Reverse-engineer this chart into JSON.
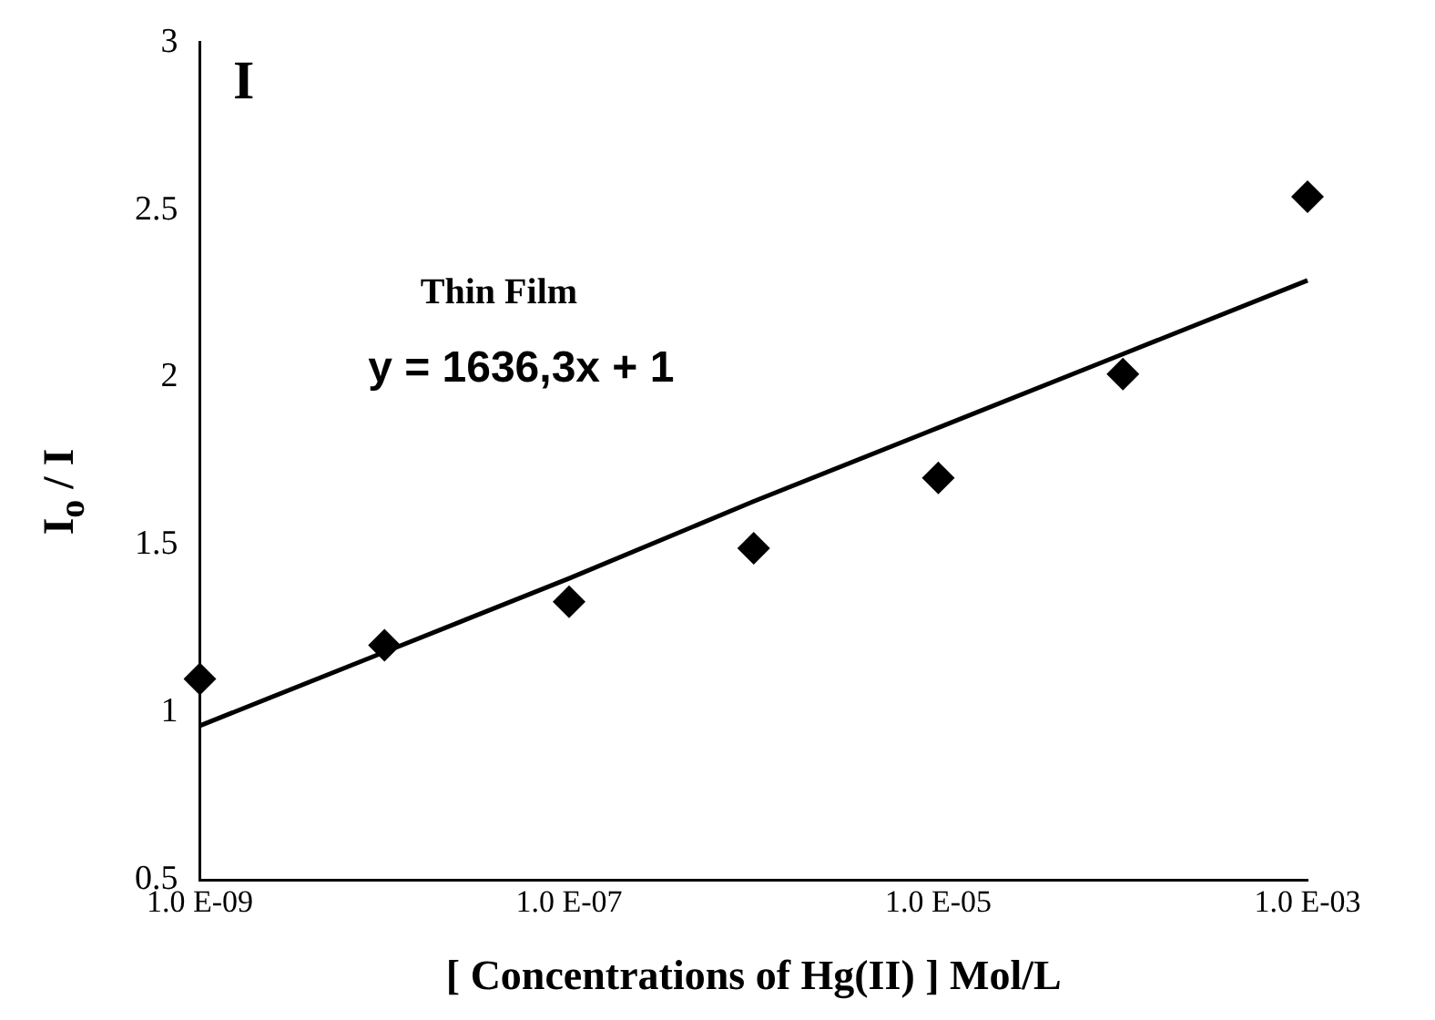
{
  "chart_data": {
    "type": "scatter",
    "annotations": [
      "I",
      "Thin Film",
      "y = 1636,3x + 1"
    ],
    "xlabel": "[ Concentrations of Hg(II) ] Mol/L",
    "ylabel": "I$_{o}$ / I",
    "categories": [
      "1.0 E-09",
      null,
      "1.0 E-07",
      null,
      "1.0 E-05",
      null,
      "1.0 E-03"
    ],
    "ylim": [
      0.5,
      3
    ],
    "yticks": [
      0.5,
      1,
      1.5,
      2,
      2.5,
      3
    ],
    "grid": false,
    "legend": false,
    "marker": "diamond",
    "series": [
      {
        "type": "scatter",
        "color": "#000000",
        "values": [
          1.1,
          1.2,
          1.33,
          1.49,
          1.7,
          2.01,
          2.54
        ]
      },
      {
        "type": "line",
        "color": "#000000",
        "marker": "none",
        "values": [
          0.96,
          1.18,
          1.4,
          1.63,
          1.85,
          2.07,
          2.29
        ]
      }
    ]
  }
}
